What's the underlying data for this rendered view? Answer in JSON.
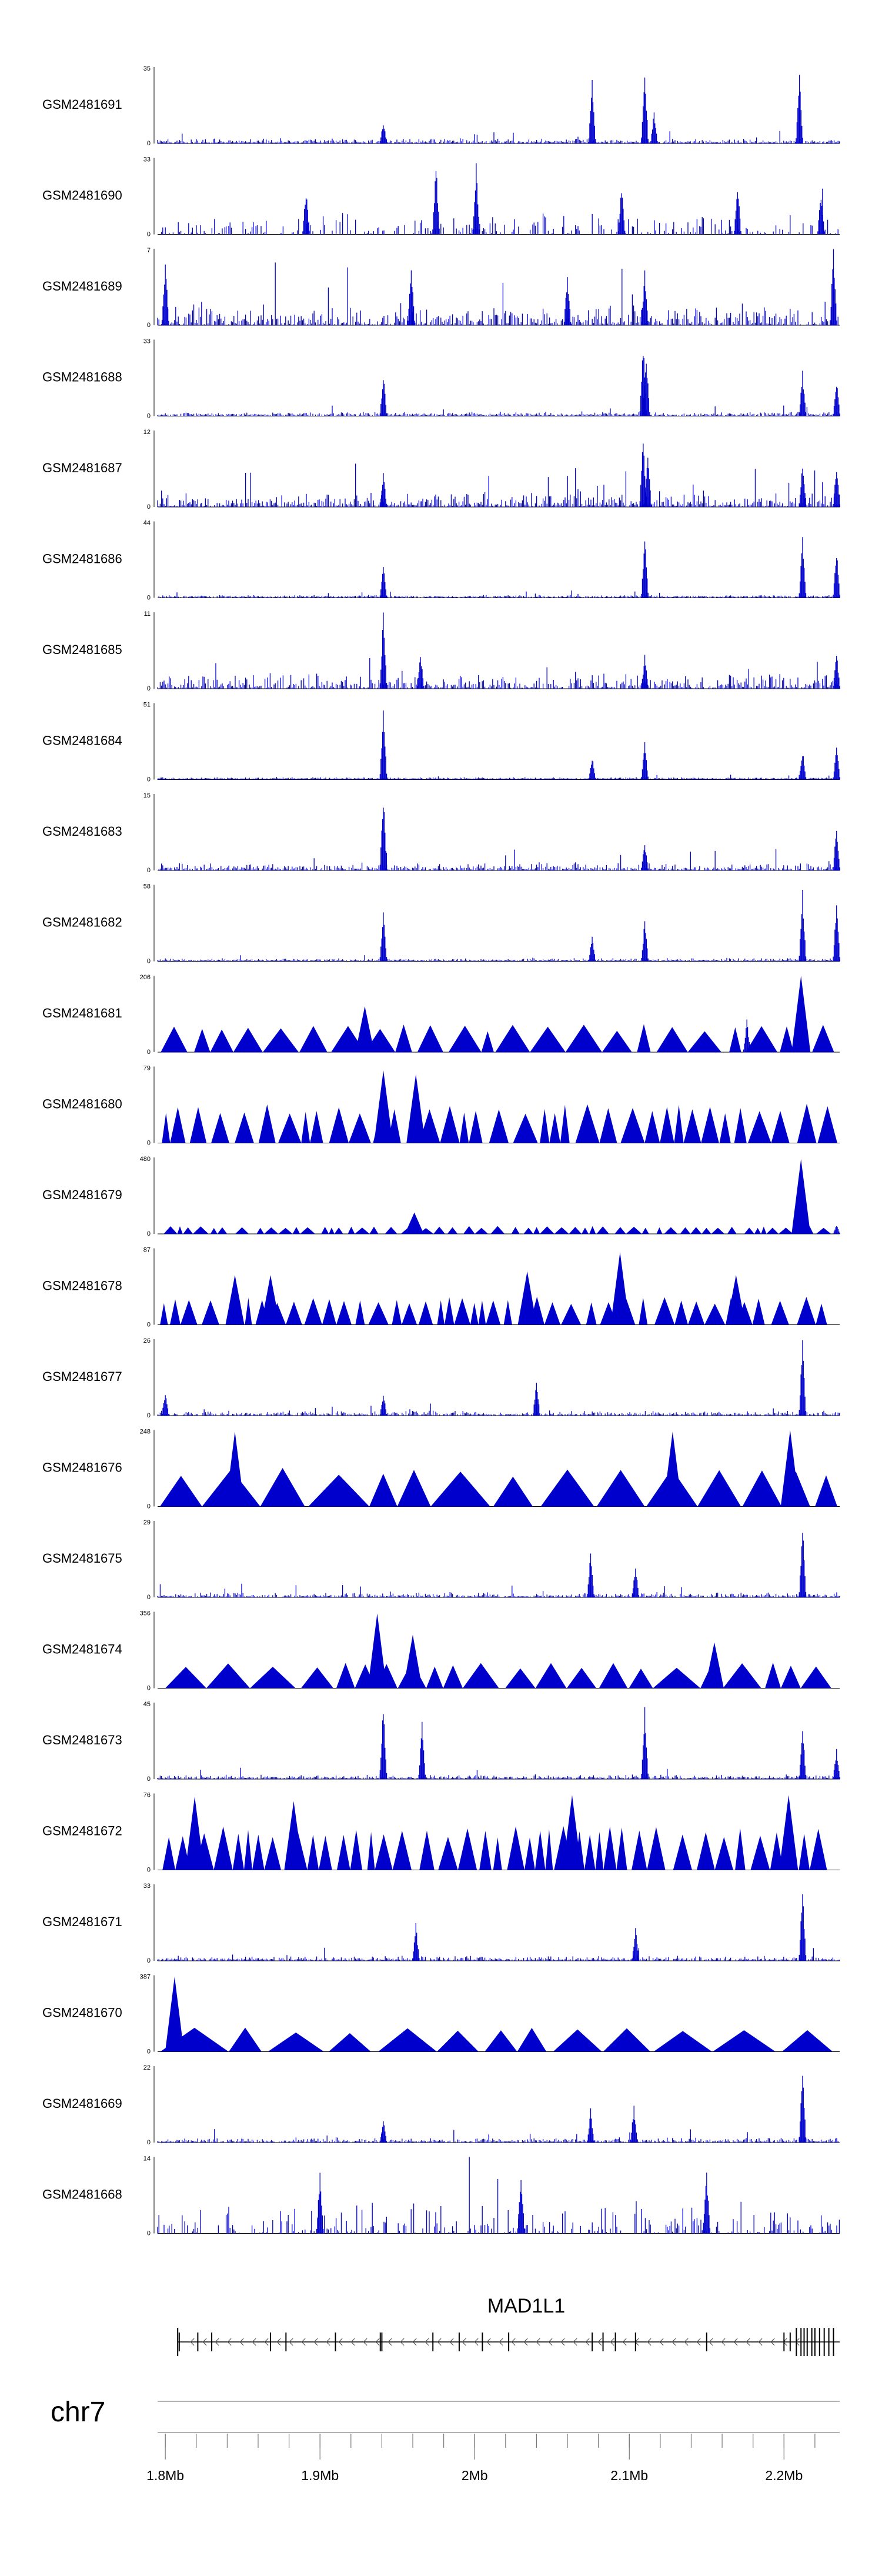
{
  "chart_data": {
    "type": "genome-browser-signal-tracks",
    "chromosome": "chr7",
    "x_range_mb": [
      1.795,
      2.236
    ],
    "track_style_note": "sparse tracks drawn as filled triangles, dense tracks drawn as bar spikes",
    "tracks": [
      {
        "name": "GSM2481691",
        "ymax": "35",
        "ymin": "0",
        "ymax_value": 35,
        "style": "dense",
        "noise": 0.06,
        "density": 0.9,
        "peaks": [
          {
            "x": 1.941,
            "h": 0.3
          },
          {
            "x": 2.076,
            "h": 0.85
          },
          {
            "x": 2.11,
            "h": 1.0
          },
          {
            "x": 2.116,
            "h": 0.45
          },
          {
            "x": 2.21,
            "h": 0.95
          }
        ]
      },
      {
        "name": "GSM2481690",
        "ymax": "33",
        "ymin": "0",
        "ymax_value": 33,
        "style": "dense",
        "noise": 0.28,
        "density": 0.45,
        "peaks": [
          {
            "x": 1.891,
            "h": 0.62
          },
          {
            "x": 1.975,
            "h": 0.98
          },
          {
            "x": 2.001,
            "h": 0.96
          },
          {
            "x": 2.095,
            "h": 0.65
          },
          {
            "x": 2.17,
            "h": 0.7
          },
          {
            "x": 2.224,
            "h": 0.6
          }
        ]
      },
      {
        "name": "GSM2481689",
        "ymax": "7",
        "ymin": "0",
        "ymax_value": 7,
        "style": "dense",
        "noise": 0.3,
        "density": 0.8,
        "peaks": [
          {
            "x": 1.8,
            "h": 0.9
          },
          {
            "x": 1.959,
            "h": 0.8
          },
          {
            "x": 2.06,
            "h": 0.7
          },
          {
            "x": 2.11,
            "h": 0.75
          },
          {
            "x": 2.232,
            "h": 1.0
          }
        ]
      },
      {
        "name": "GSM2481688",
        "ymax": "33",
        "ymin": "0",
        "ymax_value": 33,
        "style": "dense",
        "noise": 0.05,
        "density": 0.9,
        "peaks": [
          {
            "x": 1.941,
            "h": 0.55
          },
          {
            "x": 2.109,
            "h": 1.0
          },
          {
            "x": 2.111,
            "h": 0.8
          },
          {
            "x": 2.212,
            "h": 0.6
          },
          {
            "x": 2.234,
            "h": 0.5
          }
        ]
      },
      {
        "name": "GSM2481687",
        "ymax": "12",
        "ymin": "0",
        "ymax_value": 12,
        "style": "dense",
        "noise": 0.2,
        "density": 0.85,
        "peaks": [
          {
            "x": 1.941,
            "h": 0.45
          },
          {
            "x": 2.109,
            "h": 1.0
          },
          {
            "x": 2.112,
            "h": 0.7
          },
          {
            "x": 2.212,
            "h": 0.6
          },
          {
            "x": 2.234,
            "h": 0.55
          }
        ]
      },
      {
        "name": "GSM2481686",
        "ymax": "44",
        "ymin": "0",
        "ymax_value": 44,
        "style": "dense",
        "noise": 0.03,
        "density": 0.9,
        "peaks": [
          {
            "x": 1.941,
            "h": 0.42
          },
          {
            "x": 2.11,
            "h": 0.85
          },
          {
            "x": 2.212,
            "h": 0.85
          },
          {
            "x": 2.234,
            "h": 0.65
          }
        ]
      },
      {
        "name": "GSM2481685",
        "ymax": "11",
        "ymin": "0",
        "ymax_value": 11,
        "style": "dense",
        "noise": 0.22,
        "density": 0.85,
        "peaks": [
          {
            "x": 1.941,
            "h": 1.0
          },
          {
            "x": 1.965,
            "h": 0.5
          },
          {
            "x": 2.11,
            "h": 0.45
          },
          {
            "x": 2.234,
            "h": 0.5
          }
        ]
      },
      {
        "name": "GSM2481684",
        "ymax": "51",
        "ymin": "0",
        "ymax_value": 51,
        "style": "dense",
        "noise": 0.02,
        "density": 0.9,
        "peaks": [
          {
            "x": 1.941,
            "h": 0.98
          },
          {
            "x": 2.076,
            "h": 0.32
          },
          {
            "x": 2.11,
            "h": 0.5
          },
          {
            "x": 2.212,
            "h": 0.4
          },
          {
            "x": 2.234,
            "h": 0.45
          }
        ]
      },
      {
        "name": "GSM2481683",
        "ymax": "15",
        "ymin": "0",
        "ymax_value": 15,
        "style": "dense",
        "noise": 0.1,
        "density": 0.85,
        "peaks": [
          {
            "x": 1.941,
            "h": 1.0
          },
          {
            "x": 2.11,
            "h": 0.4
          },
          {
            "x": 2.234,
            "h": 0.6
          }
        ]
      },
      {
        "name": "GSM2481682",
        "ymax": "58",
        "ymin": "0",
        "ymax_value": 58,
        "style": "dense",
        "noise": 0.03,
        "density": 0.9,
        "peaks": [
          {
            "x": 1.941,
            "h": 0.72
          },
          {
            "x": 2.076,
            "h": 0.35
          },
          {
            "x": 2.11,
            "h": 0.55
          },
          {
            "x": 2.212,
            "h": 0.95
          },
          {
            "x": 2.234,
            "h": 0.8
          }
        ]
      },
      {
        "name": "GSM2481681",
        "ymax": "206",
        "ymin": "0",
        "ymax_value": 206,
        "style": "triangles",
        "tri_h": 0.32,
        "tri_count": 26,
        "peaks": [
          {
            "x": 1.929,
            "h": 0.6
          },
          {
            "x": 2.176,
            "h": 0.45
          },
          {
            "x": 2.211,
            "h": 1.0
          }
        ]
      },
      {
        "name": "GSM2481680",
        "ymax": "79",
        "ymin": "0",
        "ymax_value": 79,
        "style": "triangles",
        "tri_h": 0.45,
        "tri_count": 40,
        "peaks": [
          {
            "x": 1.941,
            "h": 0.95
          },
          {
            "x": 1.962,
            "h": 0.9
          }
        ]
      },
      {
        "name": "GSM2481679",
        "ymax": "480",
        "ymin": "0",
        "ymax_value": 480,
        "style": "triangles",
        "tri_h": 0.09,
        "tri_count": 60,
        "peaks": [
          {
            "x": 1.961,
            "h": 0.28
          },
          {
            "x": 2.211,
            "h": 0.98
          },
          {
            "x": 2.234,
            "h": 0.12
          }
        ]
      },
      {
        "name": "GSM2481678",
        "ymax": "87",
        "ymin": "0",
        "ymax_value": 87,
        "style": "triangles",
        "tri_h": 0.32,
        "tri_count": 48,
        "peaks": [
          {
            "x": 1.845,
            "h": 0.65
          },
          {
            "x": 1.868,
            "h": 0.65
          },
          {
            "x": 2.034,
            "h": 0.7
          },
          {
            "x": 2.094,
            "h": 0.95
          },
          {
            "x": 2.169,
            "h": 0.65
          }
        ]
      },
      {
        "name": "GSM2481677",
        "ymax": "26",
        "ymin": "0",
        "ymax_value": 26,
        "style": "dense",
        "noise": 0.06,
        "density": 0.8,
        "peaks": [
          {
            "x": 1.8,
            "h": 0.35
          },
          {
            "x": 1.941,
            "h": 0.3
          },
          {
            "x": 2.04,
            "h": 0.48
          },
          {
            "x": 2.212,
            "h": 1.0
          }
        ]
      },
      {
        "name": "GSM2481676",
        "ymax": "248",
        "ymin": "0",
        "ymax_value": 248,
        "style": "triangles",
        "tri_h": 0.45,
        "tri_count": 16,
        "peaks": [
          {
            "x": 1.845,
            "h": 0.98
          },
          {
            "x": 2.128,
            "h": 0.98
          },
          {
            "x": 2.204,
            "h": 1.0
          }
        ]
      },
      {
        "name": "GSM2481675",
        "ymax": "29",
        "ymin": "0",
        "ymax_value": 29,
        "style": "dense",
        "noise": 0.06,
        "density": 0.8,
        "peaks": [
          {
            "x": 2.075,
            "h": 0.62
          },
          {
            "x": 2.104,
            "h": 0.45
          },
          {
            "x": 2.212,
            "h": 0.98
          }
        ]
      },
      {
        "name": "GSM2481674",
        "ymax": "356",
        "ymin": "0",
        "ymax_value": 356,
        "style": "triangles",
        "tri_h": 0.3,
        "tri_count": 20,
        "peaks": [
          {
            "x": 1.937,
            "h": 0.98
          },
          {
            "x": 1.96,
            "h": 0.7
          },
          {
            "x": 2.155,
            "h": 0.6
          }
        ]
      },
      {
        "name": "GSM2481673",
        "ymax": "45",
        "ymin": "0",
        "ymax_value": 45,
        "style": "dense",
        "noise": 0.05,
        "density": 0.85,
        "peaks": [
          {
            "x": 1.941,
            "h": 1.0
          },
          {
            "x": 1.966,
            "h": 0.75
          },
          {
            "x": 2.11,
            "h": 0.95
          },
          {
            "x": 2.212,
            "h": 0.75
          },
          {
            "x": 2.234,
            "h": 0.4
          }
        ]
      },
      {
        "name": "GSM2481672",
        "ymax": "76",
        "ymin": "0",
        "ymax_value": 76,
        "style": "triangles",
        "tri_h": 0.5,
        "tri_count": 46,
        "peaks": [
          {
            "x": 1.819,
            "h": 0.96
          },
          {
            "x": 1.883,
            "h": 0.9
          },
          {
            "x": 2.063,
            "h": 0.98
          },
          {
            "x": 2.203,
            "h": 0.98
          }
        ]
      },
      {
        "name": "GSM2481671",
        "ymax": "33",
        "ymin": "0",
        "ymax_value": 33,
        "style": "dense",
        "noise": 0.06,
        "density": 0.8,
        "peaks": [
          {
            "x": 1.962,
            "h": 0.5
          },
          {
            "x": 2.104,
            "h": 0.45
          },
          {
            "x": 2.212,
            "h": 0.98
          }
        ]
      },
      {
        "name": "GSM2481670",
        "ymax": "387",
        "ymin": "0",
        "ymax_value": 387,
        "style": "triangles",
        "tri_h": 0.28,
        "tri_count": 14,
        "peaks": [
          {
            "x": 1.806,
            "h": 0.98
          }
        ]
      },
      {
        "name": "GSM2481669",
        "ymax": "22",
        "ymin": "0",
        "ymax_value": 22,
        "style": "dense",
        "noise": 0.06,
        "density": 0.85,
        "peaks": [
          {
            "x": 1.941,
            "h": 0.3
          },
          {
            "x": 2.075,
            "h": 0.45
          },
          {
            "x": 2.103,
            "h": 0.5
          },
          {
            "x": 2.212,
            "h": 1.0
          }
        ]
      },
      {
        "name": "GSM2481668",
        "ymax": "14",
        "ymin": "0",
        "ymax_value": 14,
        "style": "dense",
        "noise": 0.45,
        "density": 0.45,
        "peaks": [
          {
            "x": 1.9,
            "h": 0.85
          },
          {
            "x": 2.03,
            "h": 0.85
          },
          {
            "x": 2.15,
            "h": 0.85
          }
        ]
      }
    ],
    "gene": {
      "name": "MAD1L1",
      "strand": "-",
      "start_mb": 1.808,
      "end_mb": 2.236,
      "exons_mb": [
        1.808,
        1.809,
        1.821,
        1.83,
        1.868,
        1.878,
        1.91,
        1.939,
        1.94,
        1.973,
        1.99,
        2.005,
        2.022,
        2.076,
        2.083,
        2.091,
        2.104,
        2.15,
        2.2,
        2.204,
        2.208,
        2.211,
        2.213,
        2.215,
        2.218,
        2.22,
        2.223,
        2.226,
        2.229,
        2.232
      ]
    },
    "axis": {
      "ticks_major_mb": [
        1.8,
        1.9,
        2.0,
        2.1,
        2.2
      ],
      "tick_labels": [
        "1.8Mb",
        "1.9Mb",
        "2Mb",
        "2.1Mb",
        "2.2Mb"
      ],
      "minor_step_mb": 0.02
    }
  }
}
